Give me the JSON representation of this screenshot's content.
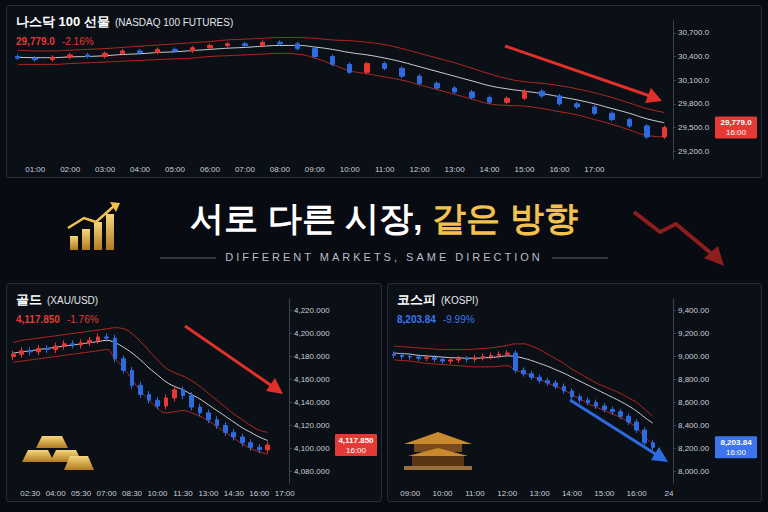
{
  "headline": [
    "서로 다른 시장,",
    "같은 방향"
  ],
  "tagline": "DIFFERENT MARKETS, SAME DIRECTION",
  "chart_data": [
    {
      "type": "candlestick",
      "title": "나스닥 100 선물",
      "subtitle": "(NASDAQ 100 FUTURES)",
      "color": "#e53935",
      "grid": false,
      "annotations": {
        "price": "29,779.0",
        "change": "-2.16%",
        "time": "16:00"
      },
      "x": [
        null,
        "01:00",
        null,
        "02:00",
        null,
        "03:00",
        null,
        "04:00",
        null,
        "05:00",
        null,
        "06:00",
        null,
        "07:00",
        null,
        "08:00",
        null,
        "09:00",
        null,
        "10:00",
        null,
        "11:00",
        null,
        "12:00",
        null,
        "13:00",
        null,
        "14:00",
        null,
        "15:00",
        null,
        "16:00",
        null,
        "17:00",
        null,
        null,
        null,
        null
      ],
      "open": [
        30400,
        30380,
        30360,
        30390,
        30420,
        30400,
        30440,
        30470,
        30450,
        30490,
        30470,
        30510,
        30540,
        30560,
        30540,
        30580,
        30560,
        30500,
        30400,
        30300,
        30200,
        30310,
        30250,
        30150,
        30060,
        30000,
        29950,
        29880,
        29820,
        29870,
        29960,
        29900,
        29800,
        29760,
        29680,
        29600,
        29520,
        29380
      ],
      "high": [
        30425,
        30405,
        30415,
        30445,
        30445,
        30465,
        30495,
        30495,
        30515,
        30515,
        30535,
        30565,
        30585,
        30585,
        30605,
        30605,
        30585,
        30525,
        30425,
        30325,
        30335,
        30335,
        30275,
        30175,
        30085,
        30025,
        29975,
        29905,
        29895,
        29985,
        29985,
        29925,
        29825,
        29785,
        29705,
        29625,
        29545,
        29525
      ],
      "low": [
        30355,
        30335,
        30335,
        30365,
        30375,
        30375,
        30415,
        30425,
        30425,
        30445,
        30445,
        30485,
        30515,
        30515,
        30515,
        30535,
        30475,
        30375,
        30275,
        30175,
        30175,
        30225,
        30125,
        30035,
        29975,
        29925,
        29855,
        29795,
        29795,
        29845,
        29875,
        29775,
        29735,
        29655,
        29575,
        29495,
        29355,
        29355
      ],
      "close": [
        30380,
        30360,
        30390,
        30420,
        30400,
        30440,
        30470,
        30450,
        30490,
        30470,
        30510,
        30540,
        30560,
        30540,
        30580,
        30560,
        30500,
        30400,
        30300,
        30200,
        30310,
        30250,
        30150,
        30060,
        30000,
        29950,
        29880,
        29820,
        29870,
        29960,
        29900,
        29800,
        29760,
        29680,
        29600,
        29520,
        29380,
        29500
      ],
      "bands": {
        "upper": [
          30480,
          30470,
          30470,
          30480,
          30490,
          30500,
          30515,
          30530,
          30545,
          30560,
          30575,
          30590,
          30610,
          30620,
          30630,
          30640,
          30640,
          30630,
          30610,
          30600,
          30580,
          30550,
          30500,
          30440,
          30380,
          30320,
          30250,
          30180,
          30120,
          30080,
          30060,
          30030,
          29990,
          29940,
          29880,
          29810,
          29740,
          29690
        ],
        "middle": [
          30390,
          30385,
          30385,
          30395,
          30400,
          30410,
          30425,
          30435,
          30450,
          30460,
          30475,
          30490,
          30505,
          30515,
          30530,
          30540,
          30540,
          30520,
          30490,
          30450,
          30420,
          30380,
          30330,
          30270,
          30210,
          30150,
          30090,
          30030,
          29990,
          29960,
          29930,
          29890,
          29850,
          29800,
          29740,
          29680,
          29610,
          29560
        ],
        "lower": [
          30300,
          30300,
          30300,
          30310,
          30320,
          30330,
          30340,
          30350,
          30360,
          30370,
          30380,
          30400,
          30410,
          30420,
          30430,
          30440,
          30430,
          30380,
          30300,
          30220,
          30180,
          30140,
          30100,
          30040,
          29980,
          29920,
          29860,
          29800,
          29780,
          29770,
          29740,
          29700,
          29660,
          29600,
          29540,
          29470,
          29400,
          29380
        ]
      },
      "ylim": [
        29100,
        30850
      ],
      "yticks": [
        {
          "value": 29200,
          "label": "29,200.0"
        },
        {
          "value": 29500,
          "label": "29,500.0"
        },
        {
          "value": 29800,
          "label": "29,800.0"
        },
        {
          "value": 30100,
          "label": "30,100.0"
        },
        {
          "value": 30400,
          "label": "30,400.0"
        },
        {
          "value": 30700,
          "label": "30,700.0"
        }
      ]
    },
    {
      "type": "candlestick",
      "title": "골드",
      "subtitle": "(XAU/USD)",
      "color": "#e53935",
      "grid": false,
      "annotations": {
        "price": "4,117.850",
        "change": "-1.76%",
        "time": "16:00"
      },
      "x": [
        null,
        null,
        "02:30",
        null,
        null,
        "04:00",
        null,
        null,
        "05:30",
        null,
        null,
        "07:00",
        null,
        null,
        "08:30",
        null,
        null,
        "10:00",
        null,
        null,
        "11:30",
        null,
        null,
        "13:00",
        null,
        null,
        "14:30",
        null,
        null,
        "16:00",
        null,
        null,
        "17:00"
      ],
      "open": [
        4180,
        4182,
        4185,
        4184,
        4187,
        4186,
        4189,
        4191,
        4190,
        4192,
        4194,
        4197,
        4196,
        4178,
        4168,
        4155,
        4147,
        4142,
        4137,
        4144,
        4151,
        4146,
        4136,
        4131,
        4125,
        4120,
        4114,
        4110,
        4105,
        4101,
        4099,
        null,
        null
      ],
      "high": [
        4185,
        4188,
        4188,
        4190,
        4190,
        4192,
        4194,
        4194,
        4195,
        4197,
        4200,
        4200,
        4199,
        4181,
        4171,
        4158,
        4150,
        4145,
        4147,
        4154,
        4154,
        4149,
        4139,
        4134,
        4128,
        4123,
        4117,
        4113,
        4108,
        4104,
        4106,
        null,
        null
      ],
      "low": [
        4177,
        4179,
        4181,
        4181,
        4183,
        4183,
        4186,
        4187,
        4187,
        4189,
        4191,
        4193,
        4175,
        4165,
        4152,
        4144,
        4139,
        4134,
        4134,
        4141,
        4143,
        4133,
        4128,
        4122,
        4117,
        4111,
        4107,
        4102,
        4098,
        4096,
        4096,
        null,
        null
      ],
      "close": [
        4182,
        4185,
        4184,
        4187,
        4186,
        4189,
        4191,
        4190,
        4192,
        4194,
        4197,
        4196,
        4178,
        4168,
        4155,
        4147,
        4142,
        4137,
        4144,
        4151,
        4146,
        4136,
        4131,
        4125,
        4120,
        4114,
        4110,
        4105,
        4101,
        4099,
        4103,
        null,
        null
      ],
      "bands": {
        "upper": [
          4192,
          4194,
          4195,
          4196,
          4197,
          4198,
          4199,
          4200,
          4201,
          4202,
          4203,
          4204,
          4205,
          4204,
          4200,
          4193,
          4185,
          4177,
          4170,
          4166,
          4163,
          4159,
          4154,
          4148,
          4142,
          4136,
          4130,
          4125,
          4120,
          4116,
          4114,
          null,
          null
        ],
        "middle": [
          4183,
          4184,
          4185,
          4186,
          4187,
          4188,
          4189,
          4190,
          4191,
          4192,
          4193,
          4194,
          4192,
          4188,
          4183,
          4177,
          4170,
          4164,
          4158,
          4154,
          4151,
          4147,
          4143,
          4138,
          4133,
          4128,
          4123,
          4118,
          4114,
          4110,
          4107,
          null,
          null
        ],
        "lower": [
          4175,
          4176,
          4177,
          4178,
          4179,
          4180,
          4181,
          4182,
          4183,
          4184,
          4185,
          4186,
          4178,
          4170,
          4160,
          4150,
          4142,
          4135,
          4131,
          4132,
          4133,
          4131,
          4128,
          4124,
          4119,
          4114,
          4109,
          4104,
          4100,
          4097,
          4095,
          null,
          null
        ]
      },
      "ylim": [
        4070,
        4230
      ],
      "yticks": [
        {
          "value": 4080,
          "label": "4,080.000"
        },
        {
          "value": 4100,
          "label": "4,100.000"
        },
        {
          "value": 4120,
          "label": "4,120.000"
        },
        {
          "value": 4140,
          "label": "4,140.000"
        },
        {
          "value": 4160,
          "label": "4,160.000"
        },
        {
          "value": 4180,
          "label": "4,180.000"
        },
        {
          "value": 4200,
          "label": "4,200.000"
        },
        {
          "value": 4220,
          "label": "4,220.000"
        }
      ]
    },
    {
      "type": "candlestick",
      "title": "코스피",
      "subtitle": "(KOSPI)",
      "color": "#3d74ee",
      "grid": false,
      "annotations": {
        "price": "8,203.84",
        "change": "-9.99%",
        "time": "16:00"
      },
      "x": [
        null,
        null,
        "09:00",
        null,
        null,
        null,
        "10:00",
        null,
        null,
        null,
        "11:00",
        null,
        null,
        null,
        "12:00",
        null,
        null,
        null,
        "13:00",
        null,
        null,
        null,
        "14:00",
        null,
        null,
        null,
        "15:00",
        null,
        null,
        null,
        "16:00",
        null,
        null,
        null,
        "24"
      ],
      "open": [
        9020,
        9010,
        9000,
        8995,
        8985,
        8990,
        8975,
        8960,
        8970,
        8980,
        8975,
        8990,
        9000,
        9010,
        9020,
        9030,
        8880,
        8850,
        8820,
        8790,
        8770,
        8740,
        8700,
        8650,
        8620,
        8600,
        8570,
        8540,
        8520,
        8480,
        8430,
        8360,
        8250,
        null,
        null
      ],
      "high": [
        9045,
        9035,
        9025,
        9020,
        9015,
        9015,
        9000,
        8995,
        9005,
        9005,
        9015,
        9025,
        9035,
        9045,
        9055,
        9055,
        8905,
        8875,
        8845,
        8815,
        8795,
        8765,
        8725,
        8675,
        8645,
        8625,
        8595,
        8565,
        8545,
        8505,
        8455,
        8385,
        8275,
        null,
        null
      ],
      "low": [
        8985,
        8975,
        8970,
        8960,
        8960,
        8950,
        8935,
        8935,
        8945,
        8950,
        8950,
        8965,
        8975,
        8985,
        8995,
        8855,
        8825,
        8795,
        8765,
        8745,
        8715,
        8675,
        8625,
        8595,
        8575,
        8545,
        8515,
        8495,
        8455,
        8405,
        8335,
        8225,
        8185,
        null,
        null
      ],
      "close": [
        9010,
        9000,
        8995,
        8985,
        8990,
        8975,
        8960,
        8970,
        8980,
        8975,
        8990,
        9000,
        9010,
        9020,
        9030,
        8880,
        8850,
        8820,
        8790,
        8770,
        8740,
        8700,
        8650,
        8620,
        8600,
        8570,
        8540,
        8520,
        8480,
        8430,
        8360,
        8250,
        8210,
        null,
        null
      ],
      "bands": {
        "upper": [
          9090,
          9085,
          9080,
          9075,
          9070,
          9065,
          9060,
          9060,
          9060,
          9060,
          9065,
          9070,
          9075,
          9085,
          9095,
          9110,
          9110,
          9090,
          9060,
          9020,
          8980,
          8940,
          8890,
          8850,
          8810,
          8770,
          8740,
          8710,
          8680,
          8640,
          8600,
          8540,
          8480,
          null,
          null
        ],
        "middle": [
          9030,
          9025,
          9020,
          9010,
          9005,
          9000,
          8995,
          8990,
          8988,
          8985,
          8985,
          8988,
          8992,
          8998,
          9005,
          9000,
          8985,
          8965,
          8940,
          8915,
          8885,
          8855,
          8820,
          8785,
          8750,
          8715,
          8680,
          8645,
          8610,
          8570,
          8525,
          8470,
          8420,
          null,
          null
        ],
        "lower": [
          8970,
          8965,
          8960,
          8950,
          8940,
          8935,
          8930,
          8925,
          8920,
          8915,
          8910,
          8910,
          8910,
          8915,
          8920,
          8880,
          8860,
          8830,
          8800,
          8770,
          8740,
          8710,
          8670,
          8630,
          8590,
          8560,
          8530,
          8500,
          8470,
          8430,
          8380,
          8300,
          8240,
          null,
          null
        ]
      },
      "ylim": [
        7900,
        9500
      ],
      "yticks": [
        {
          "value": 8000,
          "label": "8,000.00"
        },
        {
          "value": 8200,
          "label": "8,200.00"
        },
        {
          "value": 8400,
          "label": "8,400.00"
        },
        {
          "value": 8600,
          "label": "8,600.00"
        },
        {
          "value": 8800,
          "label": "8,800.00"
        },
        {
          "value": 9000,
          "label": "9,000.00"
        },
        {
          "value": 9200,
          "label": "9,200.00"
        },
        {
          "value": 9400,
          "label": "9,400.00"
        }
      ]
    }
  ]
}
